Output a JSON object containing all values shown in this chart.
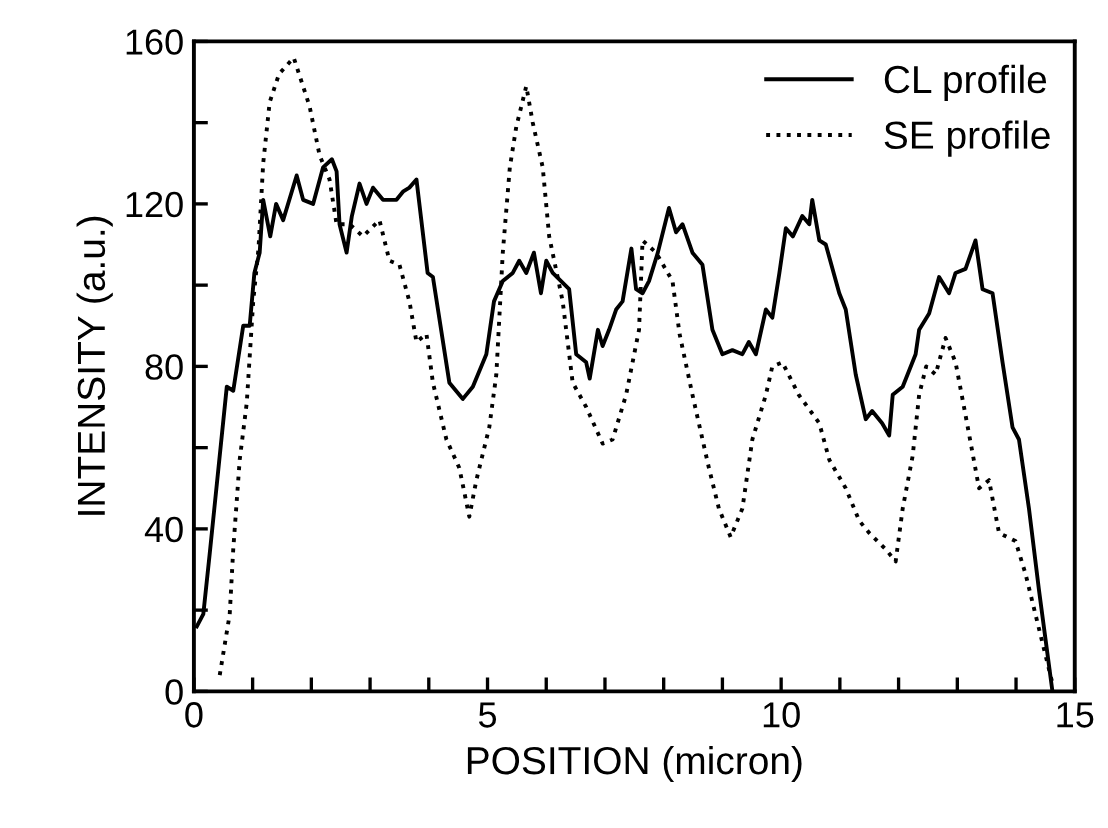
{
  "chart_data": {
    "type": "line",
    "xlabel": "POSITION (micron)",
    "ylabel": "INTENSITY (a.u.)",
    "xlim": [
      0,
      15
    ],
    "ylim": [
      0,
      160
    ],
    "xticks": [
      0,
      {
        "value": 1,
        "label": null
      },
      {
        "value": 2,
        "label": null
      },
      {
        "value": 3,
        "label": null
      },
      {
        "value": 4,
        "label": null
      },
      5,
      {
        "value": 6,
        "label": null
      },
      {
        "value": 7,
        "label": null
      },
      {
        "value": 8,
        "label": null
      },
      {
        "value": 9,
        "label": null
      },
      10,
      {
        "value": 11,
        "label": null
      },
      {
        "value": 12,
        "label": null
      },
      {
        "value": 13,
        "label": null
      },
      {
        "value": 14,
        "label": null
      },
      15
    ],
    "yticks": [
      0,
      {
        "value": 20,
        "label": null
      },
      40,
      {
        "value": 60,
        "label": null
      },
      80,
      {
        "value": 100,
        "label": null
      },
      120,
      {
        "value": 140,
        "label": null
      },
      160
    ],
    "grid": false,
    "legend": "top right",
    "marker": "none",
    "series": [
      {
        "name": "CL profile",
        "color": "#000000",
        "line_style": "solid",
        "x": [
          0.05,
          0.16,
          0.27,
          0.56,
          0.67,
          0.84,
          0.95,
          1.03,
          1.12,
          1.18,
          1.3,
          1.4,
          1.52,
          1.75,
          1.86,
          2.03,
          2.2,
          2.35,
          2.43,
          2.48,
          2.6,
          2.69,
          2.82,
          2.94,
          3.05,
          3.22,
          3.45,
          3.56,
          3.67,
          3.79,
          3.98,
          4.07,
          4.35,
          4.58,
          4.75,
          4.98,
          5.11,
          5.26,
          5.43,
          5.54,
          5.66,
          5.79,
          5.91,
          6.0,
          6.11,
          6.39,
          6.51,
          6.68,
          6.74,
          6.88,
          6.96,
          7.07,
          7.19,
          7.3,
          7.45,
          7.53,
          7.64,
          7.75,
          7.9,
          8.09,
          8.21,
          8.32,
          8.49,
          8.66,
          8.83,
          9.0,
          9.17,
          9.34,
          9.45,
          9.57,
          9.74,
          9.85,
          9.97,
          10.08,
          10.2,
          10.36,
          10.48,
          10.53,
          10.65,
          10.76,
          10.99,
          11.1,
          11.27,
          11.44,
          11.55,
          11.72,
          11.84,
          11.9,
          12.07,
          12.18,
          12.29,
          12.35,
          12.52,
          12.69,
          12.86,
          12.97,
          13.14,
          13.31,
          13.43,
          13.6,
          13.77,
          13.94,
          14.05,
          14.22,
          14.39,
          14.62
        ],
        "values": [
          16,
          19,
          34,
          75,
          74,
          90,
          90,
          103,
          108,
          121,
          112,
          120,
          116,
          127,
          121,
          120,
          129,
          131,
          128,
          115,
          108,
          117,
          125,
          120,
          124,
          121,
          121,
          123,
          124,
          126,
          103,
          102,
          76,
          72,
          75,
          83,
          96,
          101,
          103,
          106,
          103,
          108,
          98,
          106,
          103,
          99,
          83,
          81,
          77,
          89,
          85,
          89,
          94,
          96,
          109,
          99,
          98,
          101,
          108,
          119,
          113,
          115,
          108,
          105,
          89,
          83,
          84,
          83,
          86,
          83,
          94,
          92,
          103,
          114,
          112,
          117,
          115,
          121,
          111,
          110,
          98,
          94,
          78,
          67,
          69,
          66,
          63,
          73,
          75,
          79,
          83,
          89,
          93,
          102,
          98,
          103,
          104,
          111,
          99,
          98,
          81,
          65,
          62,
          45,
          25,
          0
        ]
      },
      {
        "name": "SE profile",
        "color": "#000000",
        "line_style": "dotted",
        "x": [
          0.44,
          0.61,
          0.67,
          0.78,
          0.9,
          1.01,
          1.1,
          1.18,
          1.29,
          1.45,
          1.7,
          1.97,
          2.14,
          2.31,
          2.43,
          2.65,
          2.88,
          3.16,
          3.33,
          3.5,
          3.67,
          3.79,
          3.96,
          4.07,
          4.3,
          4.52,
          4.69,
          4.81,
          5.03,
          5.15,
          5.26,
          5.38,
          5.49,
          5.66,
          5.77,
          5.94,
          6.05,
          6.28,
          6.45,
          6.68,
          6.96,
          7.13,
          7.36,
          7.58,
          7.64,
          7.87,
          8.15,
          8.27,
          8.49,
          8.77,
          8.94,
          9.14,
          9.34,
          9.51,
          9.74,
          9.85,
          10.02,
          10.3,
          10.65,
          10.82,
          11.1,
          11.33,
          11.5,
          11.78,
          11.95,
          12.07,
          12.24,
          12.35,
          12.47,
          12.63,
          12.8,
          12.97,
          13.14,
          13.37,
          13.54,
          13.71,
          13.99,
          14.16,
          14.33,
          14.5,
          14.62
        ],
        "values": [
          4,
          19,
          35,
          57,
          71,
          96,
          109,
          130,
          145,
          152,
          156,
          144,
          132,
          126,
          115,
          115,
          112,
          116,
          106,
          105,
          96,
          86,
          88,
          76,
          62,
          55,
          43,
          52,
          65,
          78,
          108,
          129,
          139,
          149,
          140,
          129,
          112,
          96,
          76,
          70,
          61,
          62,
          73,
          89,
          111,
          108,
          101,
          88,
          73,
          55,
          45,
          38,
          45,
          62,
          73,
          80,
          81,
          73,
          66,
          57,
          50,
          42,
          39,
          35,
          32,
          45,
          58,
          73,
          80,
          78,
          87,
          81,
          68,
          50,
          52,
          39,
          37,
          29,
          19,
          9,
          2
        ]
      }
    ]
  }
}
